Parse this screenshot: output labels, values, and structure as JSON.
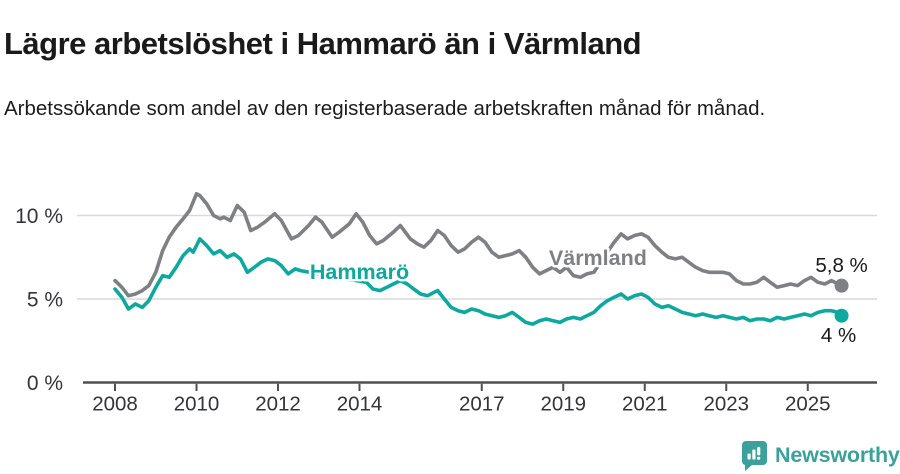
{
  "header": {
    "title": "Lägre arbetslöshet i Hammarö än i Värmland",
    "subtitle": "Arbetssökande som andel av den registerbaserade arbetskraften månad för månad."
  },
  "footer": {
    "brand": "Newsworthy"
  },
  "colors": {
    "hammaro": "#0da89e",
    "varmland": "#7e8083",
    "grid": "#d9d9d9",
    "axis": "#4d4f52",
    "tick_label": "#333538",
    "annotation": "#1a1a1a",
    "brand": "#3ba19a"
  },
  "chart_data": {
    "type": "line",
    "title": "Lägre arbetslöshet i Hammarö än i Värmland",
    "subtitle": "Arbetssökande som andel av den registerbaserade arbetskraften månad för månad.",
    "unit": "%",
    "grid": "horizontal-only",
    "legend_position": "inline-labels",
    "x_axis": {
      "range": [
        2007.2,
        2026.7
      ],
      "ticks": [
        2008,
        2010,
        2012,
        2014,
        2017,
        2019,
        2021,
        2023,
        2025
      ],
      "tick_labels": [
        "2008",
        "2010",
        "2012",
        "2014",
        "2017",
        "2019",
        "2021",
        "2023",
        "2025"
      ]
    },
    "y_axis": {
      "range": [
        0,
        13.6
      ],
      "ticks": [
        0,
        5,
        10
      ],
      "tick_labels": [
        "0 %",
        "5 %",
        "10 %"
      ]
    },
    "series": [
      {
        "name": "Värmland",
        "color": "#7e8083",
        "end_label": "5,8 %",
        "end_value": 5.8,
        "label_anchor": [
          2019.85,
          7.5
        ],
        "end_label_offset": [
          0,
          -21
        ],
        "points": [
          [
            2008.0,
            6.1
          ],
          [
            2008.17,
            5.7
          ],
          [
            2008.33,
            5.2
          ],
          [
            2008.5,
            5.3
          ],
          [
            2008.67,
            5.5
          ],
          [
            2008.83,
            5.8
          ],
          [
            2009.0,
            6.6
          ],
          [
            2009.17,
            7.9
          ],
          [
            2009.33,
            8.7
          ],
          [
            2009.5,
            9.3
          ],
          [
            2009.67,
            9.8
          ],
          [
            2009.83,
            10.3
          ],
          [
            2010.0,
            11.3
          ],
          [
            2010.08,
            11.2
          ],
          [
            2010.25,
            10.7
          ],
          [
            2010.42,
            10.0
          ],
          [
            2010.58,
            9.8
          ],
          [
            2010.67,
            9.9
          ],
          [
            2010.83,
            9.7
          ],
          [
            2011.0,
            10.6
          ],
          [
            2011.17,
            10.2
          ],
          [
            2011.33,
            9.1
          ],
          [
            2011.5,
            9.3
          ],
          [
            2011.67,
            9.6
          ],
          [
            2011.92,
            10.1
          ],
          [
            2012.08,
            9.7
          ],
          [
            2012.33,
            8.6
          ],
          [
            2012.5,
            8.8
          ],
          [
            2012.75,
            9.4
          ],
          [
            2012.92,
            9.9
          ],
          [
            2013.08,
            9.6
          ],
          [
            2013.33,
            8.7
          ],
          [
            2013.5,
            9.0
          ],
          [
            2013.75,
            9.5
          ],
          [
            2013.92,
            10.1
          ],
          [
            2014.08,
            9.6
          ],
          [
            2014.25,
            8.8
          ],
          [
            2014.42,
            8.3
          ],
          [
            2014.58,
            8.5
          ],
          [
            2014.83,
            9.0
          ],
          [
            2015.0,
            9.4
          ],
          [
            2015.25,
            8.6
          ],
          [
            2015.42,
            8.3
          ],
          [
            2015.58,
            8.1
          ],
          [
            2015.75,
            8.5
          ],
          [
            2015.92,
            9.1
          ],
          [
            2016.08,
            8.8
          ],
          [
            2016.25,
            8.2
          ],
          [
            2016.42,
            7.8
          ],
          [
            2016.58,
            8.0
          ],
          [
            2016.75,
            8.4
          ],
          [
            2016.92,
            8.7
          ],
          [
            2017.08,
            8.4
          ],
          [
            2017.25,
            7.8
          ],
          [
            2017.42,
            7.5
          ],
          [
            2017.58,
            7.6
          ],
          [
            2017.75,
            7.7
          ],
          [
            2017.92,
            7.9
          ],
          [
            2018.08,
            7.5
          ],
          [
            2018.25,
            6.9
          ],
          [
            2018.42,
            6.5
          ],
          [
            2018.58,
            6.7
          ],
          [
            2018.75,
            6.9
          ],
          [
            2018.92,
            6.6
          ],
          [
            2019.08,
            6.9
          ],
          [
            2019.25,
            6.4
          ],
          [
            2019.42,
            6.3
          ],
          [
            2019.58,
            6.5
          ],
          [
            2019.75,
            6.6
          ],
          [
            2019.92,
            7.2
          ],
          [
            2020.08,
            7.8
          ],
          [
            2020.25,
            8.4
          ],
          [
            2020.42,
            8.9
          ],
          [
            2020.58,
            8.6
          ],
          [
            2020.75,
            8.8
          ],
          [
            2020.92,
            8.9
          ],
          [
            2021.08,
            8.7
          ],
          [
            2021.25,
            8.2
          ],
          [
            2021.42,
            7.8
          ],
          [
            2021.58,
            7.5
          ],
          [
            2021.75,
            7.4
          ],
          [
            2021.92,
            7.5
          ],
          [
            2022.08,
            7.2
          ],
          [
            2022.25,
            6.9
          ],
          [
            2022.42,
            6.7
          ],
          [
            2022.58,
            6.6
          ],
          [
            2022.75,
            6.6
          ],
          [
            2022.92,
            6.6
          ],
          [
            2023.08,
            6.5
          ],
          [
            2023.25,
            6.1
          ],
          [
            2023.42,
            5.9
          ],
          [
            2023.58,
            5.9
          ],
          [
            2023.75,
            6.0
          ],
          [
            2023.92,
            6.3
          ],
          [
            2024.08,
            6.0
          ],
          [
            2024.25,
            5.7
          ],
          [
            2024.42,
            5.8
          ],
          [
            2024.58,
            5.9
          ],
          [
            2024.75,
            5.8
          ],
          [
            2024.92,
            6.1
          ],
          [
            2025.08,
            6.3
          ],
          [
            2025.25,
            6.0
          ],
          [
            2025.42,
            5.9
          ],
          [
            2025.58,
            6.1
          ],
          [
            2025.75,
            5.9
          ],
          [
            2025.83,
            5.8
          ]
        ]
      },
      {
        "name": "Hammarö",
        "color": "#0da89e",
        "end_label": "4 %",
        "end_value": 4.0,
        "label_anchor": [
          2014.0,
          6.65
        ],
        "end_label_offset": [
          -3,
          19
        ],
        "gap": [
          2012.6,
          2014.1
        ],
        "points": [
          [
            2008.0,
            5.6
          ],
          [
            2008.17,
            5.1
          ],
          [
            2008.33,
            4.4
          ],
          [
            2008.5,
            4.7
          ],
          [
            2008.67,
            4.5
          ],
          [
            2008.83,
            4.9
          ],
          [
            2009.0,
            5.7
          ],
          [
            2009.17,
            6.4
          ],
          [
            2009.33,
            6.3
          ],
          [
            2009.5,
            6.9
          ],
          [
            2009.67,
            7.6
          ],
          [
            2009.83,
            8.0
          ],
          [
            2009.92,
            7.8
          ],
          [
            2010.08,
            8.6
          ],
          [
            2010.25,
            8.2
          ],
          [
            2010.42,
            7.7
          ],
          [
            2010.58,
            7.9
          ],
          [
            2010.75,
            7.5
          ],
          [
            2010.92,
            7.7
          ],
          [
            2011.08,
            7.4
          ],
          [
            2011.25,
            6.6
          ],
          [
            2011.42,
            6.9
          ],
          [
            2011.58,
            7.2
          ],
          [
            2011.75,
            7.4
          ],
          [
            2011.92,
            7.3
          ],
          [
            2012.08,
            7.0
          ],
          [
            2012.25,
            6.5
          ],
          [
            2012.42,
            6.8
          ],
          [
            2012.55,
            6.7
          ],
          [
            2014.17,
            6.0
          ],
          [
            2014.33,
            5.6
          ],
          [
            2014.5,
            5.5
          ],
          [
            2014.67,
            5.7
          ],
          [
            2014.83,
            5.9
          ],
          [
            2015.0,
            6.1
          ],
          [
            2015.17,
            5.9
          ],
          [
            2015.33,
            5.6
          ],
          [
            2015.5,
            5.3
          ],
          [
            2015.67,
            5.2
          ],
          [
            2015.83,
            5.4
          ],
          [
            2015.92,
            5.5
          ],
          [
            2016.08,
            5.0
          ],
          [
            2016.25,
            4.5
          ],
          [
            2016.42,
            4.3
          ],
          [
            2016.58,
            4.2
          ],
          [
            2016.75,
            4.4
          ],
          [
            2016.92,
            4.3
          ],
          [
            2017.08,
            4.1
          ],
          [
            2017.25,
            4.0
          ],
          [
            2017.42,
            3.9
          ],
          [
            2017.58,
            4.0
          ],
          [
            2017.75,
            4.2
          ],
          [
            2017.92,
            3.9
          ],
          [
            2018.08,
            3.6
          ],
          [
            2018.25,
            3.5
          ],
          [
            2018.42,
            3.7
          ],
          [
            2018.58,
            3.8
          ],
          [
            2018.75,
            3.7
          ],
          [
            2018.92,
            3.6
          ],
          [
            2019.08,
            3.8
          ],
          [
            2019.25,
            3.9
          ],
          [
            2019.42,
            3.8
          ],
          [
            2019.58,
            4.0
          ],
          [
            2019.75,
            4.2
          ],
          [
            2019.92,
            4.6
          ],
          [
            2020.08,
            4.9
          ],
          [
            2020.25,
            5.1
          ],
          [
            2020.42,
            5.3
          ],
          [
            2020.58,
            5.0
          ],
          [
            2020.75,
            5.2
          ],
          [
            2020.92,
            5.3
          ],
          [
            2021.08,
            5.1
          ],
          [
            2021.25,
            4.7
          ],
          [
            2021.42,
            4.5
          ],
          [
            2021.58,
            4.6
          ],
          [
            2021.75,
            4.4
          ],
          [
            2021.92,
            4.2
          ],
          [
            2022.08,
            4.1
          ],
          [
            2022.25,
            4.0
          ],
          [
            2022.42,
            4.1
          ],
          [
            2022.58,
            4.0
          ],
          [
            2022.75,
            3.9
          ],
          [
            2022.92,
            4.0
          ],
          [
            2023.08,
            3.9
          ],
          [
            2023.25,
            3.8
          ],
          [
            2023.42,
            3.9
          ],
          [
            2023.58,
            3.7
          ],
          [
            2023.75,
            3.8
          ],
          [
            2023.92,
            3.8
          ],
          [
            2024.08,
            3.7
          ],
          [
            2024.25,
            3.9
          ],
          [
            2024.42,
            3.8
          ],
          [
            2024.58,
            3.9
          ],
          [
            2024.75,
            4.0
          ],
          [
            2024.92,
            4.1
          ],
          [
            2025.08,
            4.0
          ],
          [
            2025.25,
            4.2
          ],
          [
            2025.42,
            4.3
          ],
          [
            2025.58,
            4.3
          ],
          [
            2025.75,
            4.2
          ],
          [
            2025.83,
            4.0
          ]
        ]
      }
    ]
  }
}
